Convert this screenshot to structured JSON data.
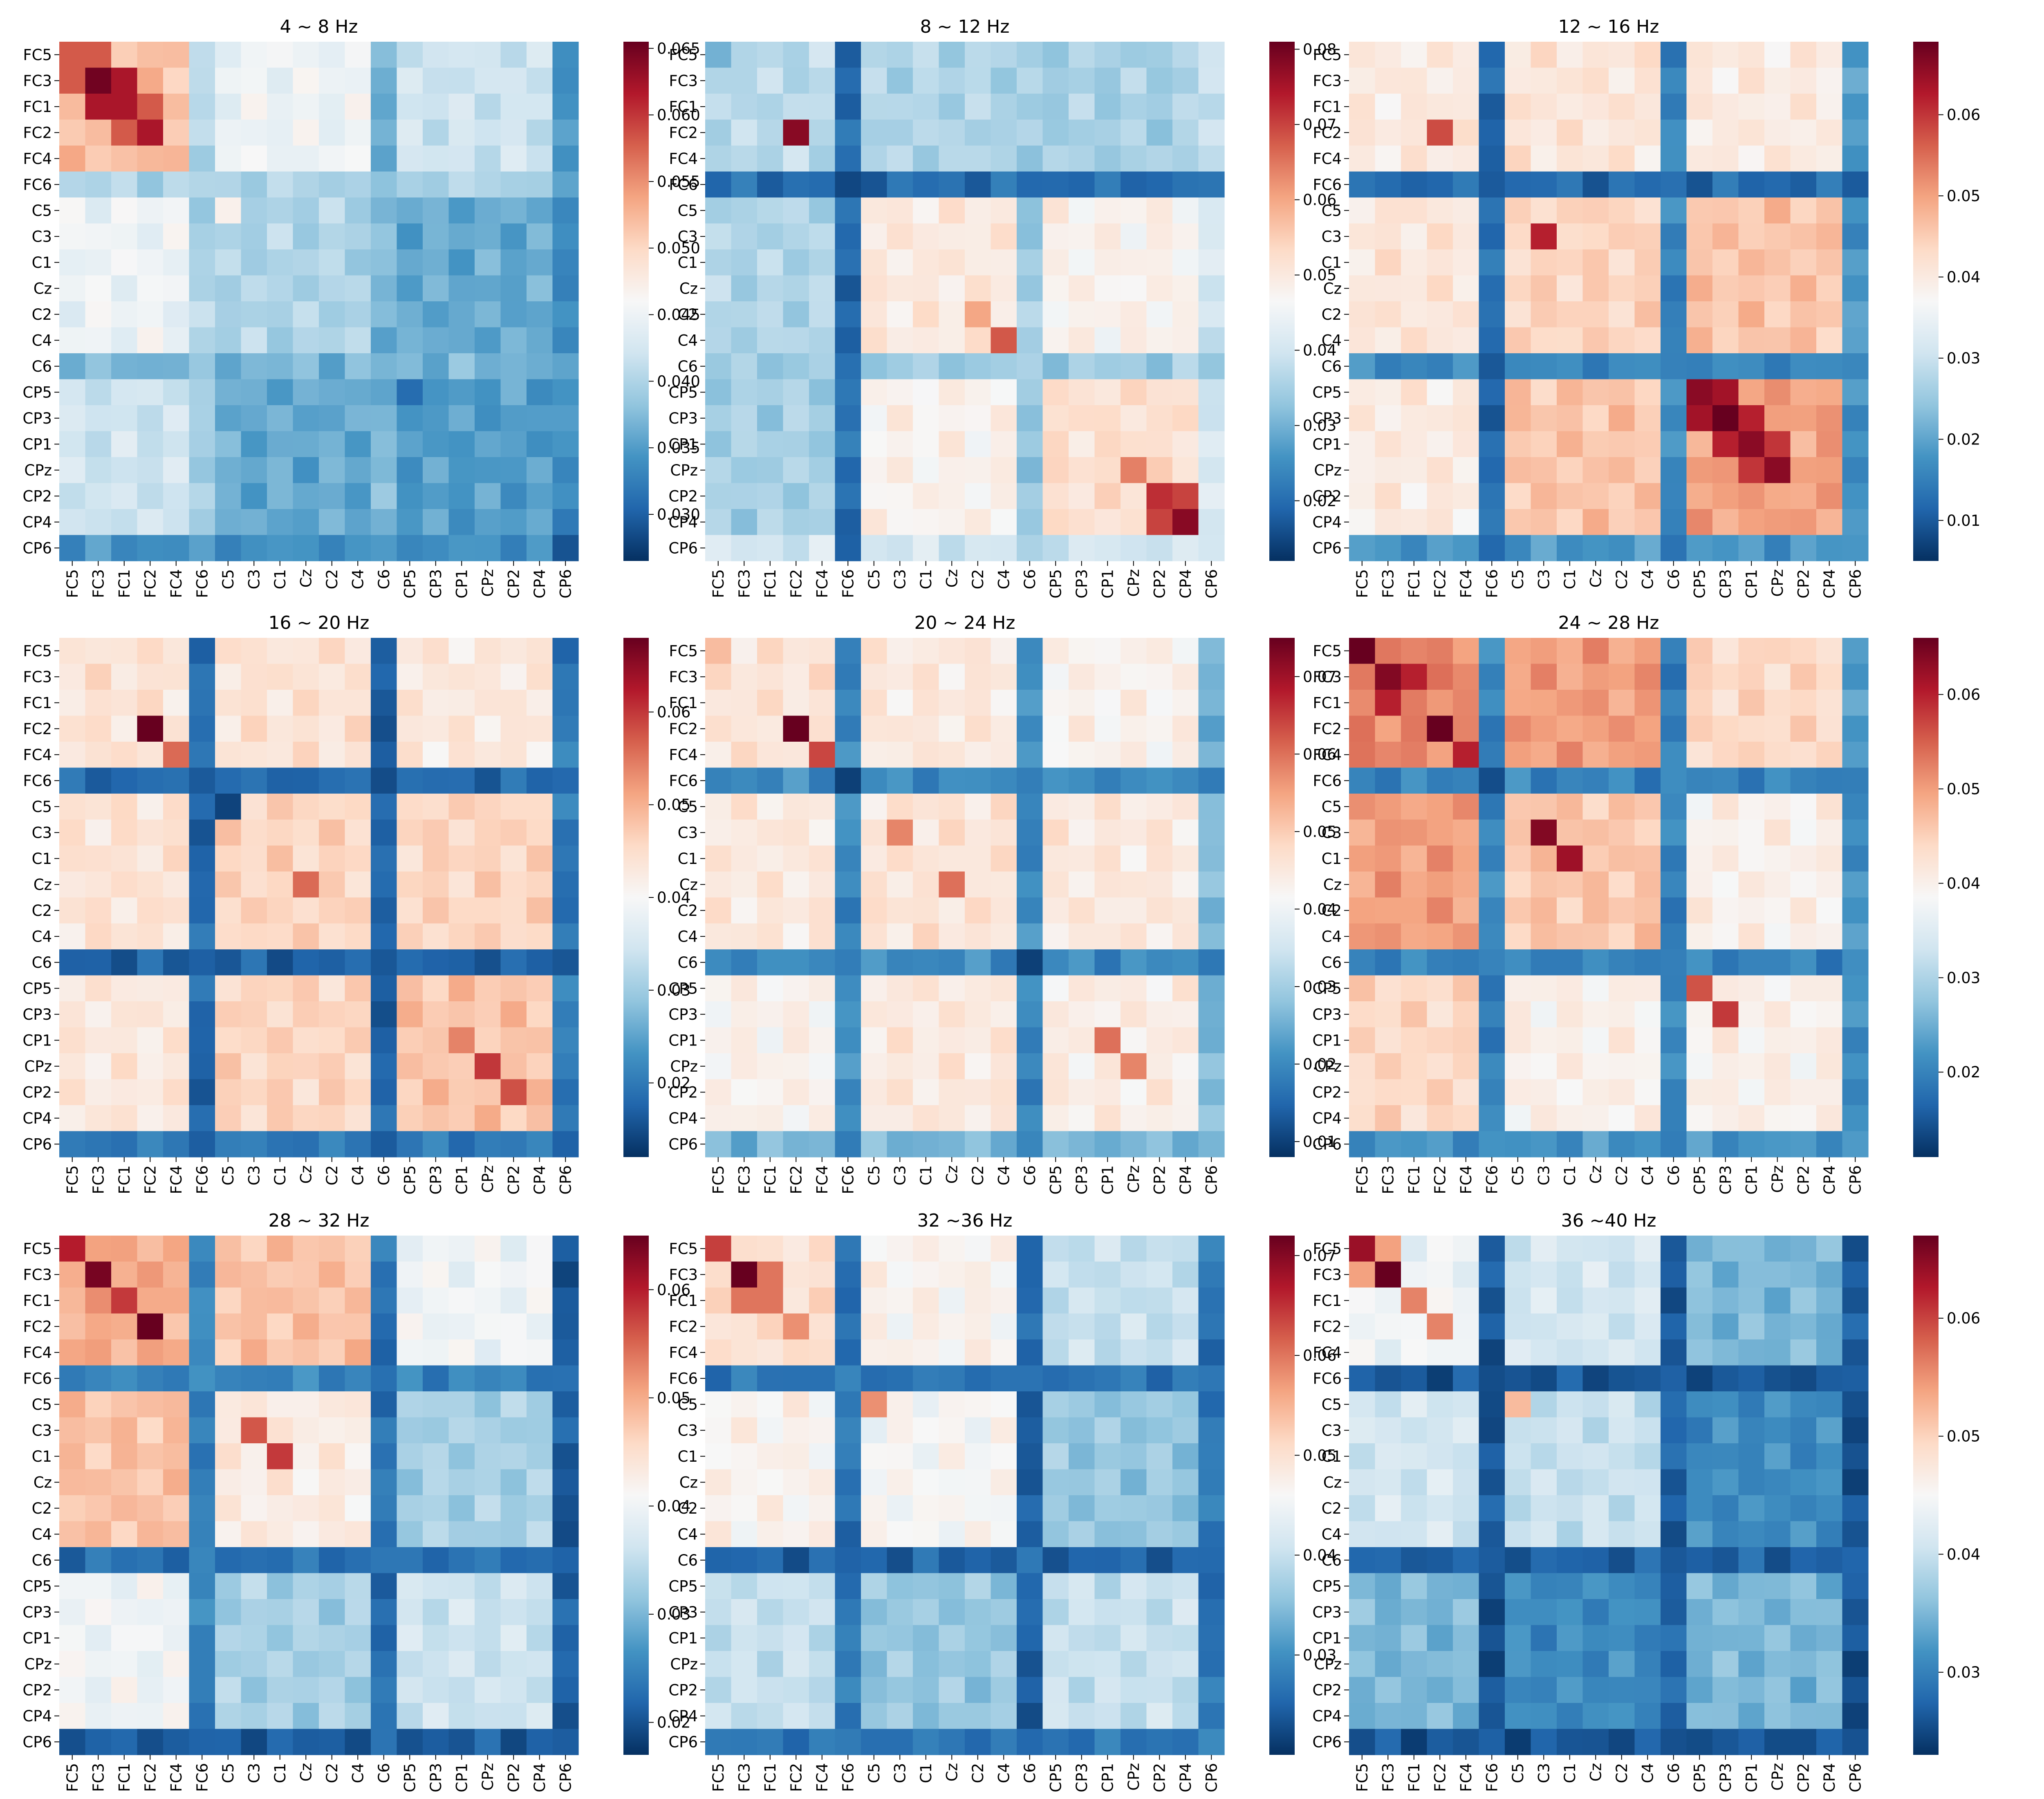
{
  "chart_data": [
    {
      "type": "heatmap",
      "title": "4 ~ 8 Hz",
      "channels": [
        "FC5",
        "FC3",
        "FC1",
        "FC2",
        "FC4",
        "FC6",
        "C5",
        "C3",
        "C1",
        "Cz",
        "C2",
        "C4",
        "C6",
        "CP5",
        "CP3",
        "CP1",
        "CPz",
        "CP2",
        "CP4",
        "CP6"
      ],
      "colorbar_ticks": [
        "0.065",
        "0.060",
        "0.055",
        "0.050",
        "0.045",
        "0.040",
        "0.035",
        "0.030"
      ],
      "vmin": 0.0265,
      "vmax": 0.0655,
      "blocks": {
        "front": 0.052,
        "cent": 0.04,
        "post": 0.035,
        "f6": 0.04,
        "c6": 0.037,
        "cp6": 0.034,
        "fc": 0.045,
        "fp": 0.042,
        "cp": 0.036
      },
      "peaks": [
        [
          0,
          0,
          0.058
        ],
        [
          1,
          1,
          0.065
        ],
        [
          2,
          2,
          0.062
        ],
        [
          3,
          3,
          0.062
        ],
        [
          0,
          1,
          0.058
        ],
        [
          1,
          2,
          0.062
        ],
        [
          2,
          3,
          0.058
        ],
        [
          6,
          6,
          0.047
        ],
        [
          13,
          13,
          0.031
        ],
        [
          19,
          19,
          0.029
        ]
      ]
    },
    {
      "type": "heatmap",
      "title": "8 ~ 12 Hz",
      "channels": [
        "FC5",
        "FC3",
        "FC1",
        "FC2",
        "FC4",
        "FC6",
        "C5",
        "C3",
        "C1",
        "Cz",
        "C2",
        "C4",
        "C6",
        "CP5",
        "CP3",
        "CP1",
        "CPz",
        "CP2",
        "CP4",
        "CP6"
      ],
      "colorbar_ticks": [
        "0.08",
        "0.07",
        "0.06",
        "0.05",
        "0.04",
        "0.03",
        "0.02"
      ],
      "vmin": 0.012,
      "vmax": 0.081,
      "blocks": {
        "front": 0.037,
        "cent": 0.05,
        "post": 0.052,
        "f6": 0.02,
        "c6": 0.034,
        "cp6": 0.04,
        "fc": 0.036,
        "fp": 0.035,
        "cp": 0.048
      },
      "peaks": [
        [
          3,
          3,
          0.078
        ],
        [
          11,
          11,
          0.068
        ],
        [
          18,
          18,
          0.078
        ],
        [
          17,
          17,
          0.072
        ],
        [
          16,
          16,
          0.064
        ],
        [
          10,
          10,
          0.06
        ],
        [
          0,
          0,
          0.03
        ],
        [
          5,
          5,
          0.015
        ],
        [
          17,
          18,
          0.07
        ]
      ]
    },
    {
      "type": "heatmap",
      "title": "12 ~ 16 Hz",
      "channels": [
        "FC5",
        "FC3",
        "FC1",
        "FC2",
        "FC4",
        "FC6",
        "C5",
        "C3",
        "C1",
        "Cz",
        "C2",
        "C4",
        "C6",
        "CP5",
        "CP3",
        "CP1",
        "CPz",
        "CP2",
        "CP4",
        "CP6"
      ],
      "colorbar_ticks": [
        "0.06",
        "0.05",
        "0.04",
        "0.03",
        "0.02",
        "0.01"
      ],
      "vmin": 0.005,
      "vmax": 0.069,
      "blocks": {
        "front": 0.04,
        "cent": 0.044,
        "post": 0.05,
        "f6": 0.012,
        "c6": 0.016,
        "cp6": 0.018,
        "fc": 0.041,
        "fp": 0.04,
        "cp": 0.046
      },
      "peaks": [
        [
          3,
          3,
          0.058
        ],
        [
          7,
          7,
          0.062
        ],
        [
          13,
          13,
          0.066
        ],
        [
          14,
          14,
          0.069
        ],
        [
          15,
          15,
          0.066
        ],
        [
          16,
          16,
          0.066
        ],
        [
          13,
          14,
          0.064
        ],
        [
          14,
          15,
          0.062
        ],
        [
          15,
          16,
          0.06
        ],
        [
          5,
          5,
          0.01
        ]
      ]
    },
    {
      "type": "heatmap",
      "title": "16 ~ 20 Hz",
      "channels": [
        "FC5",
        "FC3",
        "FC1",
        "FC2",
        "FC4",
        "FC6",
        "C5",
        "C3",
        "C1",
        "Cz",
        "C2",
        "C4",
        "C6",
        "CP5",
        "CP3",
        "CP1",
        "CPz",
        "CP2",
        "CP4",
        "CP6"
      ],
      "colorbar_ticks": [
        "0.06",
        "0.05",
        "0.04",
        "0.03",
        "0.02"
      ],
      "vmin": 0.012,
      "vmax": 0.068,
      "blocks": {
        "front": 0.044,
        "cent": 0.046,
        "post": 0.048,
        "f6": 0.018,
        "c6": 0.017,
        "cp6": 0.02,
        "fc": 0.044,
        "fp": 0.043,
        "cp": 0.046
      },
      "peaks": [
        [
          3,
          3,
          0.068
        ],
        [
          4,
          4,
          0.056
        ],
        [
          9,
          9,
          0.056
        ],
        [
          16,
          16,
          0.06
        ],
        [
          17,
          17,
          0.058
        ],
        [
          15,
          15,
          0.054
        ],
        [
          6,
          6,
          0.014
        ],
        [
          12,
          12,
          0.016
        ]
      ]
    },
    {
      "type": "heatmap",
      "title": "20 ~ 24 Hz",
      "channels": [
        "FC5",
        "FC3",
        "FC1",
        "FC2",
        "FC4",
        "FC6",
        "C5",
        "C3",
        "C1",
        "Cz",
        "C2",
        "C4",
        "C6",
        "CP5",
        "CP3",
        "CP1",
        "CPz",
        "CP2",
        "CP4",
        "CP6"
      ],
      "colorbar_ticks": [
        "0.07",
        "0.06",
        "0.05",
        "0.04",
        "0.03",
        "0.02",
        "0.01"
      ],
      "vmin": 0.008,
      "vmax": 0.075,
      "blocks": {
        "front": 0.046,
        "cent": 0.046,
        "post": 0.044,
        "f6": 0.02,
        "c6": 0.02,
        "cp6": 0.026,
        "fc": 0.045,
        "fp": 0.043,
        "cp": 0.045
      },
      "peaks": [
        [
          3,
          3,
          0.075
        ],
        [
          4,
          4,
          0.064
        ],
        [
          7,
          7,
          0.058
        ],
        [
          9,
          9,
          0.06
        ],
        [
          15,
          15,
          0.06
        ],
        [
          16,
          16,
          0.058
        ],
        [
          0,
          0,
          0.052
        ],
        [
          5,
          5,
          0.01
        ],
        [
          12,
          12,
          0.01
        ]
      ]
    },
    {
      "type": "heatmap",
      "title": "24 ~ 28 Hz",
      "channels": [
        "FC5",
        "FC3",
        "FC1",
        "FC2",
        "FC4",
        "FC6",
        "C5",
        "C3",
        "C1",
        "Cz",
        "C2",
        "C4",
        "C6",
        "CP5",
        "CP3",
        "CP1",
        "CPz",
        "CP2",
        "CP4",
        "CP6"
      ],
      "colorbar_ticks": [
        "0.06",
        "0.05",
        "0.04",
        "0.03",
        "0.02"
      ],
      "vmin": 0.011,
      "vmax": 0.066,
      "blocks": {
        "front": 0.052,
        "cent": 0.046,
        "post": 0.04,
        "f6": 0.02,
        "c6": 0.02,
        "cp6": 0.022,
        "fc": 0.05,
        "fp": 0.044,
        "cp": 0.04
      },
      "peaks": [
        [
          0,
          0,
          0.066
        ],
        [
          1,
          1,
          0.064
        ],
        [
          3,
          3,
          0.066
        ],
        [
          4,
          4,
          0.06
        ],
        [
          7,
          7,
          0.064
        ],
        [
          8,
          8,
          0.062
        ],
        [
          1,
          2,
          0.06
        ],
        [
          13,
          13,
          0.056
        ],
        [
          14,
          14,
          0.058
        ],
        [
          5,
          5,
          0.014
        ]
      ]
    },
    {
      "type": "heatmap",
      "title": "28 ~ 32 Hz",
      "channels": [
        "FC5",
        "FC3",
        "FC1",
        "FC2",
        "FC4",
        "FC6",
        "C5",
        "C3",
        "C1",
        "Cz",
        "C2",
        "C4",
        "C6",
        "CP5",
        "CP3",
        "CP1",
        "CPz",
        "CP2",
        "CP4",
        "CP6"
      ],
      "colorbar_ticks": [
        "0.06",
        "0.05",
        "0.04",
        "0.03",
        "0.02"
      ],
      "vmin": 0.017,
      "vmax": 0.065,
      "blocks": {
        "front": 0.05,
        "cent": 0.043,
        "post": 0.036,
        "f6": 0.025,
        "c6": 0.023,
        "cp6": 0.021,
        "fc": 0.048,
        "fp": 0.04,
        "cp": 0.033
      },
      "peaks": [
        [
          0,
          0,
          0.06
        ],
        [
          1,
          1,
          0.064
        ],
        [
          2,
          2,
          0.058
        ],
        [
          3,
          3,
          0.065
        ],
        [
          8,
          8,
          0.058
        ],
        [
          7,
          7,
          0.056
        ]
      ]
    },
    {
      "type": "heatmap",
      "title": "32 ~36 Hz",
      "channels": [
        "FC5",
        "FC3",
        "FC1",
        "FC2",
        "FC4",
        "FC6",
        "C5",
        "C3",
        "C1",
        "Cz",
        "C2",
        "C4",
        "C6",
        "CP5",
        "CP3",
        "CP1",
        "CPz",
        "CP2",
        "CP4",
        "CP6"
      ],
      "colorbar_ticks": [
        "0.07",
        "0.06",
        "0.05",
        "0.04",
        "0.03"
      ],
      "vmin": 0.02,
      "vmax": 0.072,
      "blocks": {
        "front": 0.05,
        "cent": 0.046,
        "post": 0.04,
        "f6": 0.027,
        "c6": 0.025,
        "cp6": 0.027,
        "fc": 0.047,
        "fp": 0.04,
        "cp": 0.036
      },
      "peaks": [
        [
          0,
          0,
          0.064
        ],
        [
          1,
          1,
          0.072
        ],
        [
          2,
          2,
          0.06
        ],
        [
          3,
          3,
          0.058
        ],
        [
          6,
          6,
          0.058
        ],
        [
          1,
          2,
          0.06
        ]
      ]
    },
    {
      "type": "heatmap",
      "title": "36 ~40 Hz",
      "channels": [
        "FC5",
        "FC3",
        "FC1",
        "FC2",
        "FC4",
        "FC6",
        "C5",
        "C3",
        "C1",
        "Cz",
        "C2",
        "C4",
        "C6",
        "CP5",
        "CP3",
        "CP1",
        "CPz",
        "CP2",
        "CP4",
        "CP6"
      ],
      "colorbar_ticks": [
        "0.06",
        "0.05",
        "0.04",
        "0.03"
      ],
      "vmin": 0.023,
      "vmax": 0.067,
      "blocks": {
        "front": 0.044,
        "cent": 0.04,
        "post": 0.035,
        "f6": 0.026,
        "c6": 0.027,
        "cp6": 0.026,
        "fc": 0.041,
        "fp": 0.035,
        "cp": 0.031
      },
      "peaks": [
        [
          0,
          0,
          0.064
        ],
        [
          1,
          1,
          0.067
        ],
        [
          2,
          2,
          0.056
        ],
        [
          3,
          3,
          0.056
        ],
        [
          6,
          6,
          0.052
        ],
        [
          0,
          1,
          0.054
        ]
      ]
    }
  ]
}
